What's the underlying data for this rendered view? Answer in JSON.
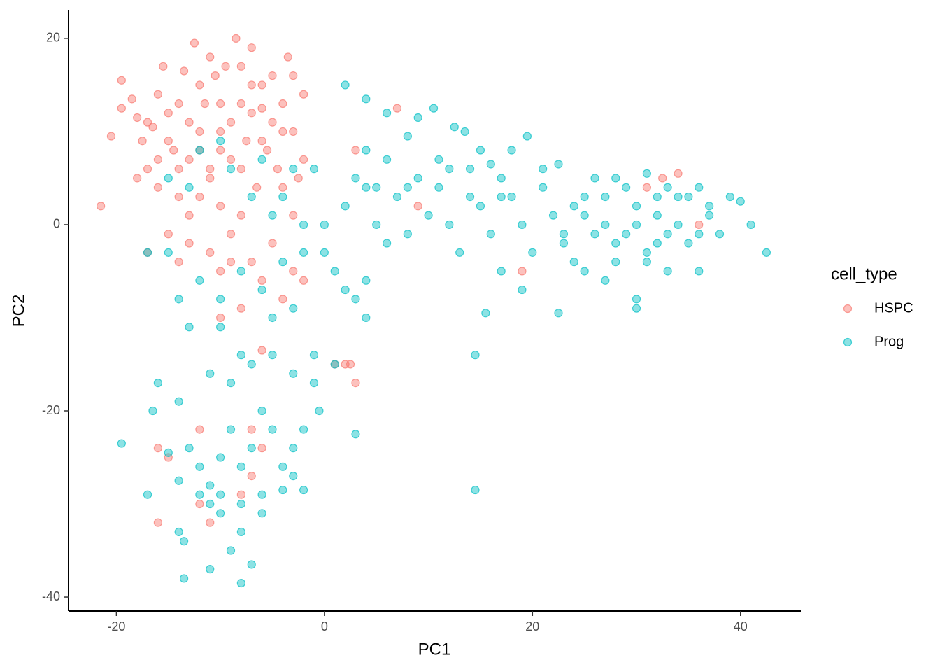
{
  "chart_data": {
    "type": "scatter",
    "x_label": "PC1",
    "y_label": "PC2",
    "legend_title": "cell_type",
    "legend_position": "right",
    "xlim": [
      -24.6,
      45.8
    ],
    "ylim": [
      -41.5,
      23.0
    ],
    "xticks": [
      -20,
      0,
      20,
      40
    ],
    "yticks": [
      -40,
      -20,
      0,
      20
    ],
    "series": [
      {
        "name": "HSPC",
        "color": "#F8766D",
        "x": [
          -21.5,
          -20.5,
          -19.5,
          -19.5,
          -18.5,
          -18,
          -17.5,
          -17,
          -16.5,
          -16,
          -15.5,
          -15,
          -14.5,
          -14,
          -13.5,
          -13,
          -12.5,
          -12,
          -11.5,
          -11,
          -10.5,
          -10,
          -9.5,
          -9,
          -8.5,
          -8,
          -7.5,
          -7,
          -6.5,
          -6,
          -5.5,
          -5,
          -4.5,
          -4,
          -3.5,
          -3,
          -2.5,
          -2,
          -3,
          -12,
          -10,
          -8,
          -14,
          -16,
          -18,
          -15,
          -13,
          -11,
          -9,
          -7,
          -6,
          -4,
          -17,
          -14,
          -10,
          -8,
          -6,
          2,
          2.5,
          3,
          7,
          3,
          9,
          19,
          31,
          34,
          32.5,
          36,
          -12,
          -16,
          -11,
          -9,
          -5,
          -3,
          -12,
          -10,
          -8,
          -6,
          -11,
          -13,
          -9,
          -7,
          -5,
          -4,
          -14,
          -15,
          -16,
          -17,
          -12,
          -10,
          -11,
          -7,
          -4,
          -2,
          -8,
          -6,
          -13,
          -3,
          -2,
          -10,
          -7,
          -6,
          -15,
          -12,
          -7,
          -8,
          -16,
          1
        ],
        "y": [
          2,
          9.5,
          15.5,
          12.5,
          13.5,
          11.5,
          9,
          6,
          10.5,
          14,
          17,
          12,
          8,
          6,
          16.5,
          11,
          19.5,
          8,
          13,
          5,
          16,
          10,
          17,
          7,
          20,
          13,
          9,
          15,
          4,
          12.5,
          8,
          16,
          6,
          13,
          18,
          10,
          5,
          14,
          16,
          3,
          2,
          1,
          3,
          4,
          5,
          -1,
          -2,
          -3,
          -1,
          -4,
          -6,
          -8,
          -3,
          -4,
          -5,
          -9,
          -13.5,
          -15,
          -15,
          -17,
          12.5,
          8,
          2,
          -5,
          4,
          5.5,
          5,
          0,
          -30,
          -32,
          -32,
          -4,
          -2,
          1,
          10,
          8,
          6,
          9,
          6,
          7,
          11,
          12,
          11,
          4,
          13,
          9,
          7,
          11,
          15,
          13,
          18,
          19,
          10,
          7,
          17,
          15,
          1,
          -5,
          -6,
          -10,
          -22,
          -24,
          -25,
          -22,
          -27,
          -29,
          -24,
          -15
        ]
      },
      {
        "name": "Prog",
        "color": "#00BFC4",
        "x": [
          -15,
          -13,
          -12,
          -10,
          -9,
          -7,
          -6,
          -5,
          -4,
          -3,
          -2,
          -1,
          -15,
          -17,
          -14,
          -12,
          -10,
          -8,
          -6,
          -5,
          -4,
          -3,
          -2,
          -13,
          -10,
          -8,
          -11,
          -9,
          -7,
          -5,
          -3,
          -1,
          1,
          -1,
          -16,
          -14,
          -16.5,
          -19.5,
          -17,
          -15,
          -13,
          -12,
          -11,
          -10,
          -9,
          -8,
          -7,
          -6,
          -5,
          -4,
          -3,
          -2,
          -14,
          -12,
          -10,
          -8,
          -6,
          -4,
          -2,
          -14,
          -13.5,
          -11,
          -9,
          -8,
          -7,
          -8,
          -13.5,
          -6,
          -10,
          -11,
          -3,
          -0.5,
          3,
          0,
          1,
          2,
          3,
          4,
          4,
          0,
          2,
          4,
          5,
          6,
          7,
          8,
          9,
          10,
          11,
          12,
          13,
          14,
          15,
          16,
          17,
          18,
          19,
          20,
          21,
          22,
          23,
          24,
          2,
          4,
          6,
          9,
          10.5,
          12.5,
          13.5,
          15,
          16,
          18,
          19.5,
          8,
          11,
          4,
          3,
          6,
          5,
          8,
          12,
          14,
          17,
          21,
          22.5,
          14.5,
          14.5,
          15.5,
          17,
          19,
          22.5,
          25,
          26,
          27,
          28,
          29,
          30,
          31,
          32,
          33,
          34,
          35,
          36,
          37,
          38,
          39,
          40,
          41,
          42.5,
          30,
          30,
          25,
          27,
          28,
          31,
          33,
          36,
          26,
          29,
          32,
          34,
          36,
          24,
          23,
          25,
          27,
          28,
          35,
          37,
          33,
          31,
          30,
          32
        ],
        "y": [
          5,
          4,
          8,
          9,
          6,
          3,
          7,
          1,
          3,
          6,
          0,
          6,
          -3,
          -3,
          -8,
          -6,
          -8,
          -5,
          -7,
          -10,
          -4,
          -9,
          -3,
          -11,
          -11,
          -14,
          -16,
          -17,
          -15,
          -14,
          -16,
          -17,
          -15,
          -14,
          -17,
          -19,
          -20,
          -23.5,
          -29,
          -24.5,
          -24,
          -26,
          -28,
          -25,
          -22,
          -26,
          -24,
          -20,
          -22,
          -26,
          -24,
          -22,
          -27.5,
          -29,
          -29,
          -30,
          -29,
          -28.5,
          -28.5,
          -33,
          -34,
          -37,
          -35,
          -33,
          -36.5,
          -38.5,
          -38,
          -31,
          -31,
          -30,
          -27,
          -20,
          -22.5,
          -3,
          -5,
          -7,
          -8,
          -6,
          -10,
          0,
          2,
          4,
          0,
          -2,
          3,
          -1,
          5,
          1,
          4,
          0,
          -3,
          6,
          2,
          -1,
          5,
          3,
          0,
          -3,
          4,
          1,
          -2,
          2,
          15,
          13.5,
          12,
          11.5,
          12.5,
          10.5,
          10,
          8,
          6.5,
          8,
          9.5,
          9.5,
          7,
          8,
          5,
          7,
          4,
          4,
          6,
          3,
          3,
          6,
          6.5,
          -14,
          -28.5,
          -9.5,
          -5,
          -7,
          -9.5,
          3,
          5,
          0,
          -2,
          4,
          2,
          -3,
          1,
          -1,
          3,
          -2,
          4,
          1,
          -1,
          3,
          2.5,
          0,
          -3,
          -8,
          -9,
          -5,
          -6,
          -4,
          -4,
          -5,
          -5,
          -1,
          -1,
          -2,
          0,
          -1,
          -4,
          -1,
          1,
          3,
          5,
          3,
          2,
          4,
          5.5,
          0,
          3
        ]
      }
    ]
  }
}
